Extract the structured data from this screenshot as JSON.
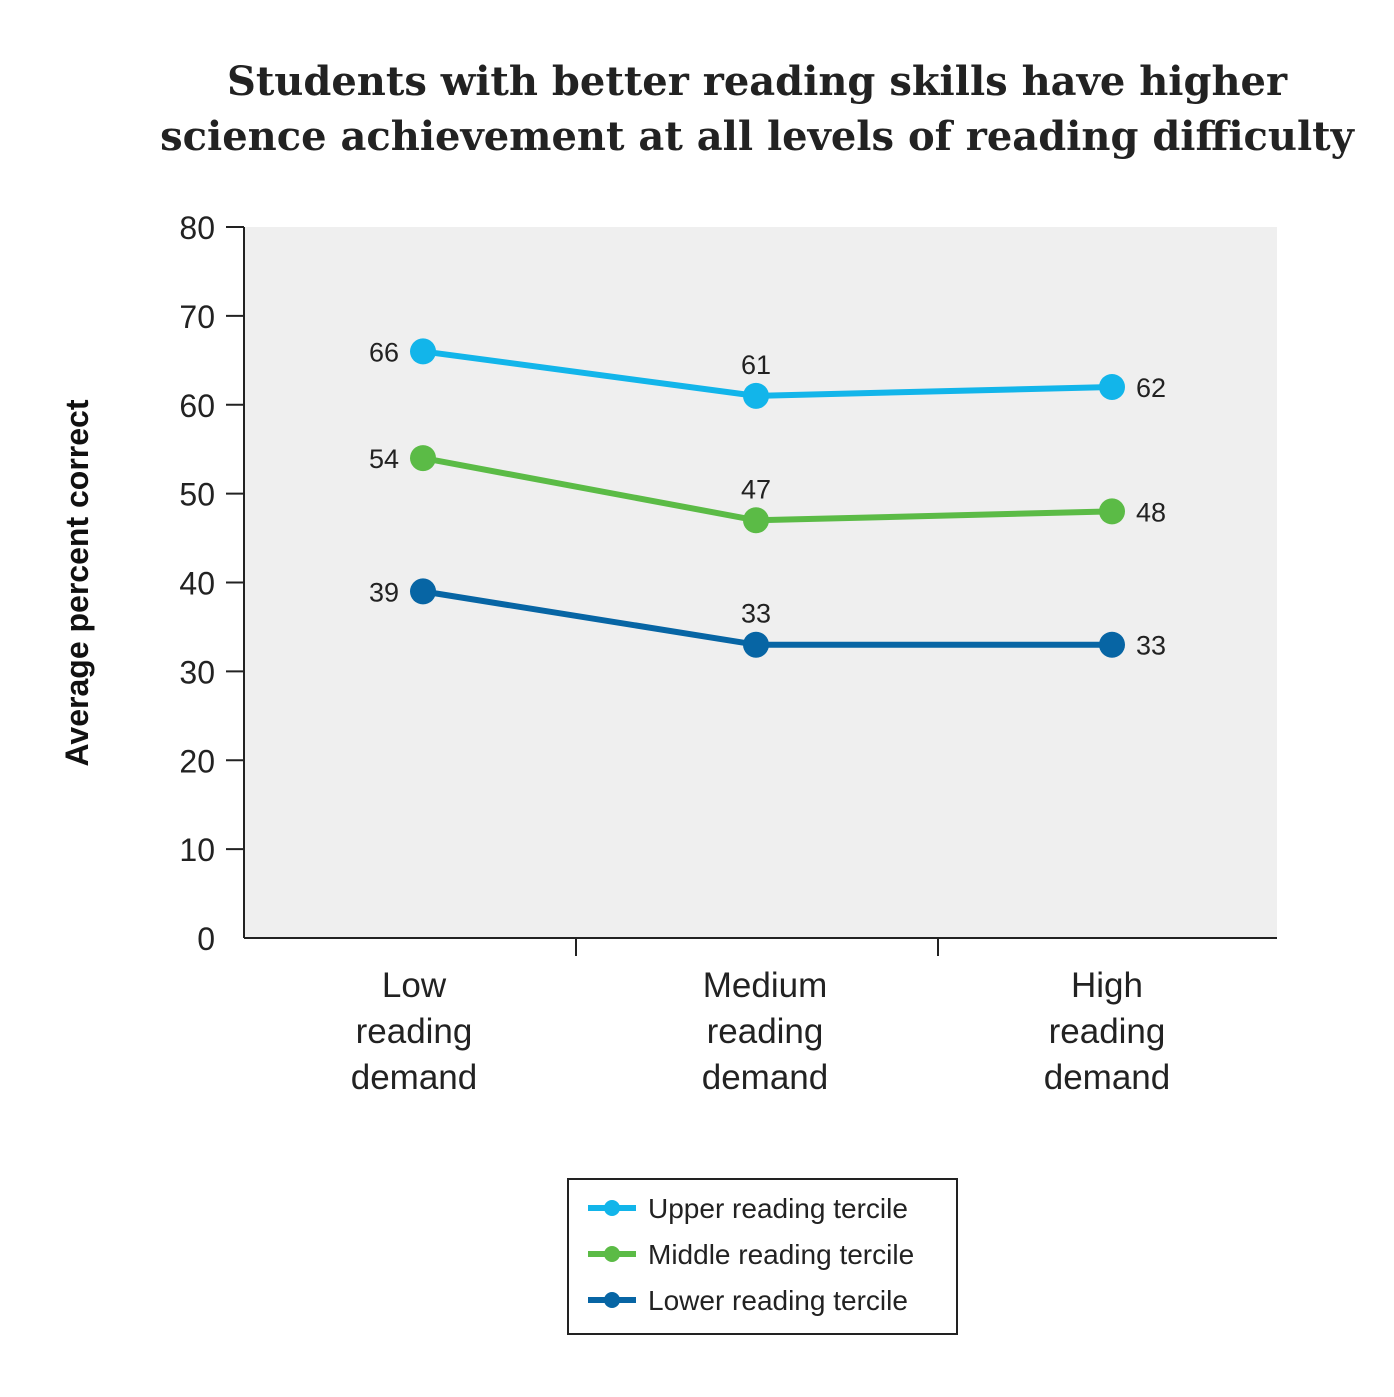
{
  "chart_data": {
    "type": "line",
    "title_lines": [
      "Students with better reading skills have higher",
      "science achievement at all levels of reading difficulty"
    ],
    "ylabel": "Average percent correct",
    "ylim": [
      0,
      80
    ],
    "yticks": [
      "0",
      "10",
      "20",
      "30",
      "40",
      "50",
      "60",
      "70",
      "80"
    ],
    "categories": [
      [
        "Low",
        "reading",
        "demand"
      ],
      [
        "Medium",
        "reading",
        "demand"
      ],
      [
        "High",
        "reading",
        "demand"
      ]
    ],
    "series": [
      {
        "name": "Upper reading tercile",
        "color": "#12b5ea",
        "values": [
          66,
          61,
          62
        ]
      },
      {
        "name": "Middle reading tercile",
        "color": "#5bbb46",
        "values": [
          54,
          47,
          48
        ]
      },
      {
        "name": "Lower reading tercile",
        "color": "#0765a4",
        "values": [
          39,
          33,
          33
        ]
      }
    ],
    "plot_background": "#efefef",
    "legend_position": "bottom-center",
    "grid": false
  }
}
